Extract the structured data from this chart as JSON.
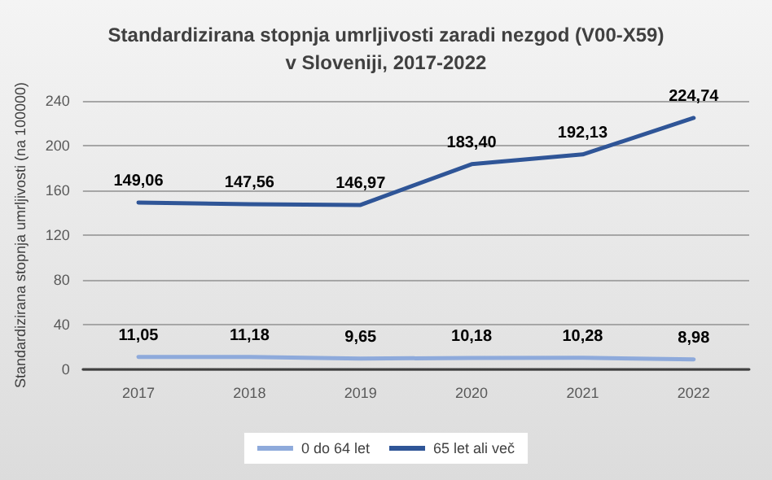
{
  "chart_data": {
    "type": "line",
    "title": "Standardizirana stopnja umrljivosti zaradi nezgod (V00-X59)\nv Sloveniji, 2017-2022",
    "ylabel": "Standardizirana stopnja umrljivosti (na 100000)",
    "categories": [
      "2017",
      "2018",
      "2019",
      "2020",
      "2021",
      "2022"
    ],
    "series": [
      {
        "name": "0 do 64 let",
        "color": "#8eaadb",
        "values": [
          11.05,
          11.18,
          9.65,
          10.18,
          10.28,
          8.98
        ],
        "value_labels": [
          "11,05",
          "11,18",
          "9,65",
          "10,18",
          "10,28",
          "8,98"
        ]
      },
      {
        "name": "65 let ali več",
        "color": "#2f5597",
        "values": [
          149.06,
          147.56,
          146.97,
          183.4,
          192.13,
          224.74
        ],
        "value_labels": [
          "149,06",
          "147,56",
          "146,97",
          "183,40",
          "192,13",
          "224,74"
        ]
      }
    ],
    "ylim": [
      0,
      240
    ],
    "yticks": [
      0,
      40,
      80,
      120,
      160,
      200,
      240
    ],
    "grid": "y",
    "legend": "bottom",
    "marker": "none",
    "line_style": "solid"
  }
}
